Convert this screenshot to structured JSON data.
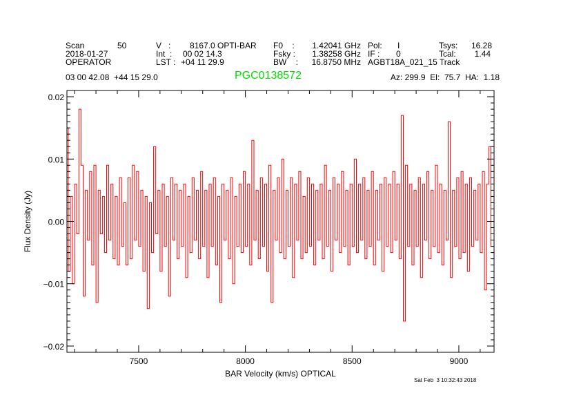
{
  "header": {
    "scan_label": "Scan",
    "scan_value": "50",
    "date": "2018-01-27",
    "observer": "OPERATOR",
    "v_label": "V   :",
    "v_value": "8167.0 OPTI-BAR",
    "int_label": "Int  :",
    "int_value": "00 02 14.3",
    "lst_label": "LST :",
    "lst_value": "+04 11 29.9",
    "f0_label": "F0    :",
    "f0_value": "1.42041 GHz",
    "fsky_label": "Fsky :",
    "fsky_value": "1.38258 GHz",
    "bw_label": "BW    :",
    "bw_value": "16.8750 MHz",
    "pol_label": "Pol:",
    "pol_value": "I",
    "if_label": "IF :",
    "if_value": "0",
    "project": "AGBT18A_021_15 Track",
    "tsys_label": "Tsys:",
    "tsys_value": "16.28",
    "tcal_label": "Tcal:",
    "tcal_value": "1.44",
    "coords": "03 00 42.08  +44 15 29.0",
    "source": "PGC0138572",
    "azelha": "Az: 299.9  El:  75.7  HA:  1.18"
  },
  "footer": {
    "timestamp": "Sat Feb  3 10:32:43 2018"
  },
  "colors": {
    "spectrum": "#ff0000",
    "source": "#00e000",
    "axes": "#000000"
  },
  "chart_data": {
    "type": "line",
    "style": "histogram",
    "title": "",
    "xlabel": "BAR Velocity (km/s) OPTICAL",
    "ylabel": "Flux Density (Jy)",
    "xlim": [
      7164,
      9165
    ],
    "ylim": [
      -0.021,
      0.021
    ],
    "xticks": [
      7500,
      8000,
      8500,
      9000
    ],
    "xtick_labels": [
      "7500",
      "8000",
      "8500",
      "9000"
    ],
    "xminor_step": 100,
    "yticks": [
      -0.02,
      -0.01,
      0.0,
      0.01,
      0.02
    ],
    "ytick_labels": [
      "−0.02",
      "−0.01",
      "0.00",
      "0.01",
      "0.02"
    ],
    "yminor_step": 0.001,
    "grid": false,
    "series": [
      {
        "x": [
          7165,
          7175,
          7185,
          7195,
          7205,
          7215,
          7225,
          7235,
          7245,
          7255,
          7265,
          7275,
          7285,
          7295,
          7305,
          7315,
          7325,
          7335,
          7345,
          7355,
          7365,
          7375,
          7385,
          7395,
          7405,
          7415,
          7425,
          7435,
          7445,
          7455,
          7465,
          7475,
          7485,
          7495,
          7505,
          7515,
          7525,
          7535,
          7545,
          7555,
          7565,
          7575,
          7585,
          7595,
          7605,
          7615,
          7625,
          7635,
          7645,
          7655,
          7665,
          7675,
          7685,
          7695,
          7705,
          7715,
          7725,
          7735,
          7745,
          7755,
          7765,
          7775,
          7785,
          7795,
          7805,
          7815,
          7825,
          7835,
          7845,
          7855,
          7865,
          7875,
          7885,
          7895,
          7905,
          7915,
          7925,
          7935,
          7945,
          7955,
          7965,
          7975,
          7985,
          7995,
          8005,
          8015,
          8025,
          8035,
          8045,
          8055,
          8065,
          8075,
          8085,
          8095,
          8105,
          8115,
          8125,
          8135,
          8145,
          8155,
          8165,
          8175,
          8185,
          8195,
          8205,
          8215,
          8225,
          8235,
          8245,
          8255,
          8265,
          8275,
          8285,
          8295,
          8305,
          8315,
          8325,
          8335,
          8345,
          8355,
          8365,
          8375,
          8385,
          8395,
          8405,
          8415,
          8425,
          8435,
          8445,
          8455,
          8465,
          8475,
          8485,
          8495,
          8505,
          8515,
          8525,
          8535,
          8545,
          8555,
          8565,
          8575,
          8585,
          8595,
          8605,
          8615,
          8625,
          8635,
          8645,
          8655,
          8665,
          8675,
          8685,
          8695,
          8705,
          8715,
          8725,
          8735,
          8745,
          8755,
          8765,
          8775,
          8785,
          8795,
          8805,
          8815,
          8825,
          8835,
          8845,
          8855,
          8865,
          8875,
          8885,
          8895,
          8905,
          8915,
          8925,
          8935,
          8945,
          8955,
          8965,
          8975,
          8985,
          8995,
          9005,
          9015,
          9025,
          9035,
          9045,
          9055,
          9065,
          9075,
          9085,
          9095,
          9105,
          9115,
          9125,
          9135,
          9145,
          9155
        ],
        "y": [
          0.015,
          -0.008,
          0.004,
          -0.01,
          0.006,
          -0.002,
          0.018,
          0.009,
          -0.012,
          0.005,
          -0.003,
          0.008,
          -0.007,
          0.009,
          -0.013,
          0.005,
          -0.002,
          0.004,
          -0.005,
          0.009,
          -0.003,
          0.006,
          -0.006,
          0.004,
          -0.007,
          0.007,
          -0.004,
          0.003,
          -0.007,
          0.007,
          -0.006,
          0.009,
          -0.003,
          0.008,
          -0.004,
          0.005,
          -0.008,
          0.004,
          -0.014,
          0.003,
          -0.005,
          0.012,
          -0.002,
          0.005,
          -0.008,
          0.006,
          -0.004,
          0.004,
          -0.012,
          0.007,
          -0.003,
          0.006,
          -0.006,
          0.005,
          -0.004,
          0.006,
          -0.009,
          0.004,
          -0.005,
          0.007,
          -0.003,
          0.005,
          -0.006,
          0.008,
          -0.004,
          0.005,
          -0.009,
          0.006,
          -0.004,
          0.007,
          -0.007,
          0.004,
          -0.013,
          0.006,
          -0.003,
          0.005,
          -0.006,
          0.007,
          -0.01,
          0.004,
          -0.004,
          0.006,
          -0.005,
          0.008,
          -0.004,
          0.006,
          -0.007,
          0.013,
          -0.003,
          0.005,
          -0.006,
          0.007,
          -0.004,
          0.006,
          -0.008,
          0.009,
          -0.013,
          0.005,
          -0.003,
          0.007,
          -0.005,
          0.01,
          -0.006,
          0.005,
          -0.004,
          0.007,
          -0.009,
          0.006,
          -0.003,
          0.008,
          -0.006,
          0.004,
          -0.005,
          0.007,
          -0.004,
          0.006,
          -0.007,
          0.005,
          -0.003,
          0.006,
          -0.006,
          0.009,
          -0.004,
          0.005,
          -0.008,
          0.007,
          -0.003,
          0.006,
          -0.005,
          0.008,
          -0.004,
          0.005,
          -0.007,
          0.006,
          -0.004,
          0.01,
          -0.005,
          0.006,
          -0.003,
          0.007,
          -0.006,
          0.005,
          -0.004,
          0.008,
          -0.007,
          0.005,
          -0.003,
          0.006,
          -0.008,
          0.007,
          -0.004,
          0.006,
          -0.005,
          0.008,
          -0.003,
          0.006,
          -0.006,
          0.017,
          -0.016,
          0.009,
          -0.004,
          0.006,
          -0.007,
          0.005,
          -0.004,
          0.007,
          -0.009,
          0.006,
          -0.003,
          0.008,
          -0.006,
          0.005,
          -0.004,
          0.009,
          -0.005,
          0.006,
          -0.007,
          0.005,
          -0.003,
          0.016,
          -0.009,
          0.005,
          -0.004,
          0.007,
          -0.006,
          0.008,
          -0.005,
          0.006,
          -0.008,
          0.007,
          -0.004,
          0.005,
          -0.003,
          0.006,
          -0.005,
          0.008,
          -0.011,
          0.006,
          0.012,
          -0.004
        ]
      }
    ]
  }
}
